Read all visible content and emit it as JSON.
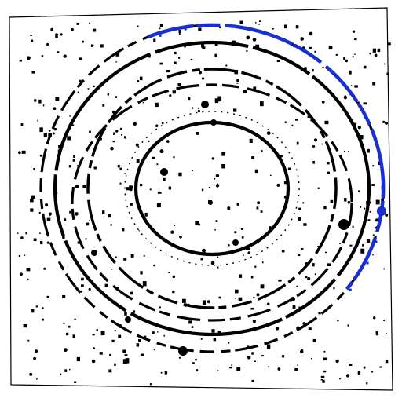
{
  "image": {
    "kind": "binarized diffraction ring pattern",
    "colors": {
      "background": "#ffffff",
      "ink": "#000000",
      "highlight": "#1a2fd0"
    },
    "rings": [
      {
        "name": "ring-inner",
        "style": "solid"
      },
      {
        "name": "ring-second",
        "style": "dashed-faint"
      },
      {
        "name": "ring-third",
        "style": "broken"
      },
      {
        "name": "ring-fourth",
        "style": "broken"
      },
      {
        "name": "ring-fifth",
        "style": "solid"
      },
      {
        "name": "ring-outer",
        "style": "broken-partly-highlighted"
      }
    ]
  }
}
